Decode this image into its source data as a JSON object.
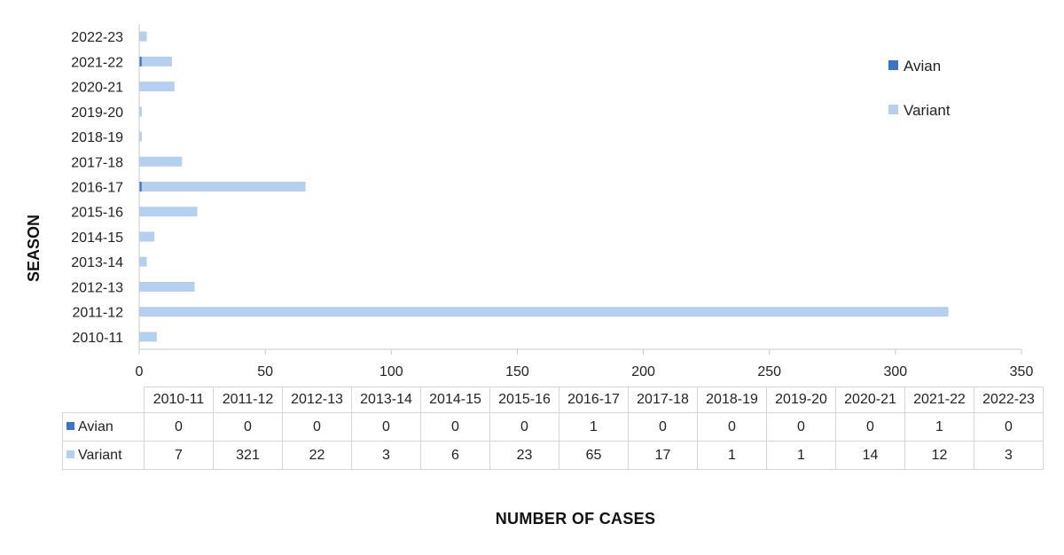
{
  "chart_data": {
    "type": "bar",
    "orientation": "horizontal",
    "categories": [
      "2010-11",
      "2011-12",
      "2012-13",
      "2013-14",
      "2014-15",
      "2015-16",
      "2016-17",
      "2017-18",
      "2018-19",
      "2019-20",
      "2020-21",
      "2021-22",
      "2022-23"
    ],
    "series": [
      {
        "name": "Avian",
        "color": "#3a74c5",
        "values": [
          0,
          0,
          0,
          0,
          0,
          0,
          1,
          0,
          0,
          0,
          0,
          1,
          0
        ]
      },
      {
        "name": "Variant",
        "color": "#b4cff0",
        "values": [
          7,
          321,
          22,
          3,
          6,
          23,
          65,
          17,
          1,
          1,
          14,
          12,
          3
        ]
      }
    ],
    "stacked": true,
    "xlabel": "NUMBER  OF CASES",
    "ylabel": "SEASON",
    "xlim": [
      0,
      350
    ],
    "xticks": [
      "0",
      "50",
      "100",
      "150",
      "200",
      "250",
      "300",
      "350"
    ],
    "grid": false,
    "legend": "top-right",
    "data_table": true
  }
}
